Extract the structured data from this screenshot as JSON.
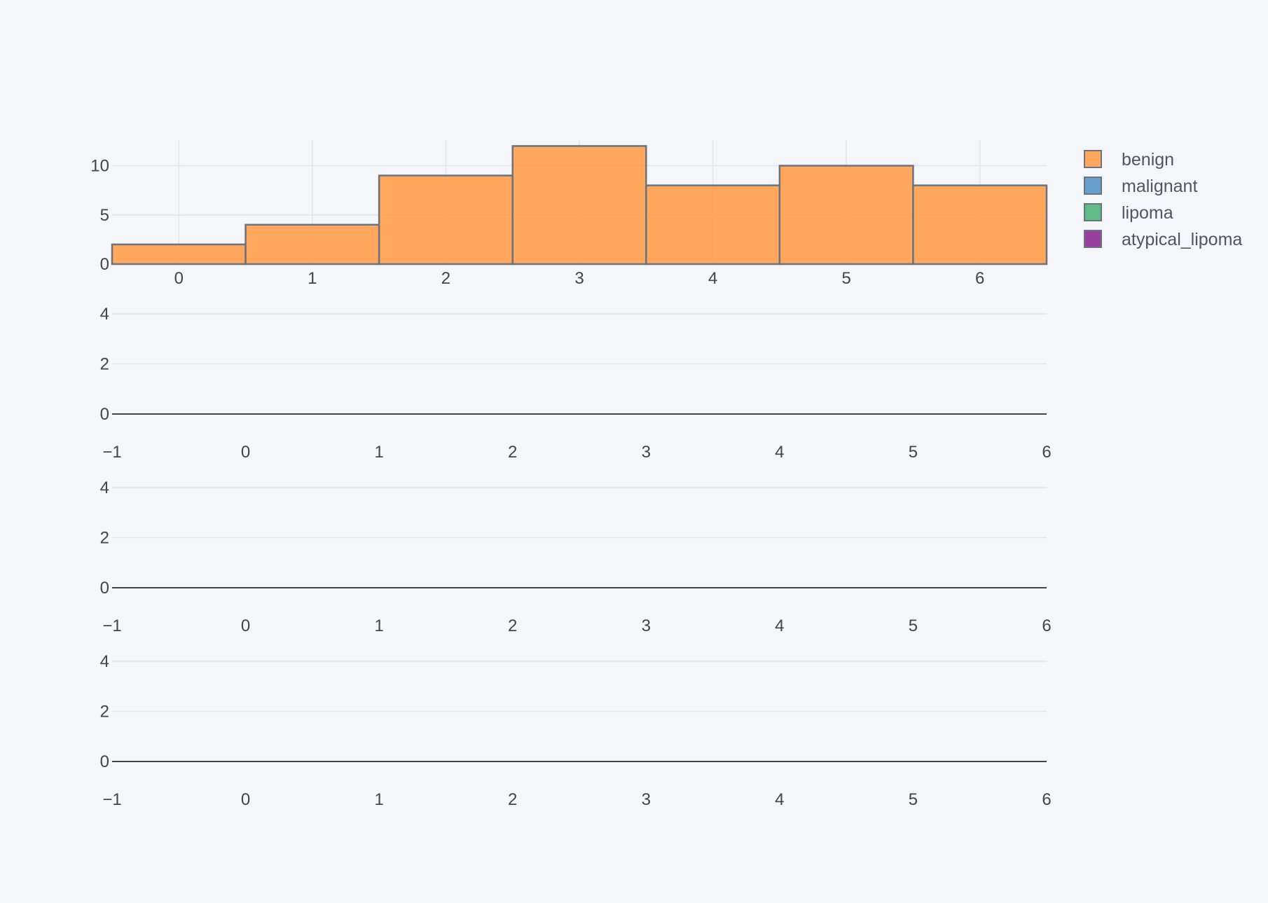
{
  "chart_data": [
    {
      "type": "bar",
      "subplot": 1,
      "categories": [
        "0",
        "1",
        "2",
        "3",
        "4",
        "5",
        "6"
      ],
      "series": [
        {
          "name": "benign",
          "values": [
            2,
            4,
            9,
            12,
            8,
            10,
            8
          ]
        }
      ],
      "xlim": [
        -0.5,
        6.5
      ],
      "ylim": [
        0,
        12.6
      ],
      "yticks": [
        0,
        5,
        10
      ],
      "grid": true
    },
    {
      "type": "bar",
      "subplot": 2,
      "series": [],
      "xlim": [
        -1,
        6
      ],
      "ylim": [
        0,
        4
      ],
      "xticks": [
        "−1",
        "0",
        "1",
        "2",
        "3",
        "4",
        "5",
        "6"
      ],
      "yticks": [
        0,
        2,
        4
      ],
      "grid": true
    },
    {
      "type": "bar",
      "subplot": 3,
      "series": [],
      "xlim": [
        -1,
        6
      ],
      "ylim": [
        0,
        4
      ],
      "xticks": [
        "−1",
        "0",
        "1",
        "2",
        "3",
        "4",
        "5",
        "6"
      ],
      "yticks": [
        0,
        2,
        4
      ],
      "grid": true
    },
    {
      "type": "bar",
      "subplot": 4,
      "series": [],
      "xlim": [
        -1,
        6
      ],
      "ylim": [
        0,
        4
      ],
      "xticks": [
        "−1",
        "0",
        "1",
        "2",
        "3",
        "4",
        "5",
        "6"
      ],
      "yticks": [
        0,
        2,
        4
      ],
      "grid": true
    }
  ],
  "legend": {
    "placement": "right",
    "items": [
      {
        "label": "benign",
        "color": "#ffa04f"
      },
      {
        "label": "malignant",
        "color": "#5b96c8"
      },
      {
        "label": "lipoma",
        "color": "#52b77e"
      },
      {
        "label": "atypical_lipoma",
        "color": "#922f96"
      }
    ]
  },
  "colors": {
    "background": "#f5f6f9",
    "grid": "#e2e4ea",
    "zero_line": "#444444",
    "bar_outline": "#6b7280"
  }
}
